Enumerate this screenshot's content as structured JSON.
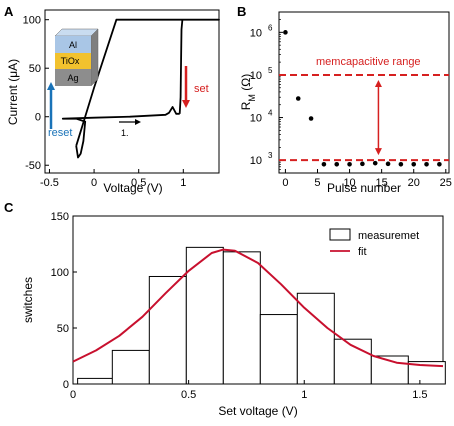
{
  "chart_data": [
    {
      "panel": "A",
      "type": "line",
      "title": "",
      "xlabel": "Voltage (V)",
      "ylabel": "Current (μA)",
      "xlim": [
        -0.55,
        1.4
      ],
      "ylim": [
        -58,
        110
      ],
      "xticks": [
        "-0.5",
        "0",
        "0.5",
        "1"
      ],
      "yticks": [
        "-50",
        "0",
        "50",
        "100"
      ],
      "series": [
        {
          "name": "",
          "x": [
            0.96,
            0.97,
            0.975,
            0.98,
            0.99,
            1.4,
            0.35,
            0.25,
            0.0,
            -0.15,
            -0.2
          ],
          "y": [
            3,
            20,
            60,
            90,
            100,
            100,
            100,
            100,
            30,
            -15,
            -30
          ]
        },
        {
          "name": "",
          "x": [
            -0.2,
            -0.18,
            -0.15,
            -0.12,
            -0.1,
            -0.2,
            -0.3,
            -0.35,
            0.0,
            0.4,
            0.8,
            0.84,
            0.88,
            0.92,
            0.96
          ],
          "y": [
            -30,
            -42,
            -38,
            -25,
            -5,
            -2,
            -2,
            -2,
            -1,
            0,
            2,
            4,
            10,
            3,
            3
          ]
        }
      ],
      "inset_layers": [
        "Al",
        "TiOx",
        "Ag"
      ],
      "annotations": {
        "reset": "reset",
        "set": "set",
        "sweep": "1."
      },
      "colors": {
        "reset": "#1a73b8",
        "set": "#d62020",
        "al": "#a9c6e6",
        "tiox": "#f2c22e",
        "ag": "#8d8d8d"
      }
    },
    {
      "panel": "B",
      "type": "scatter",
      "title": "",
      "xlabel": "Pulse number",
      "ylabel": "RM (Ω)",
      "yscale": "log",
      "xlim": [
        -1,
        25.5
      ],
      "ylim": [
        500,
        3000000
      ],
      "xticks": [
        "0",
        "5",
        "10",
        "15",
        "20",
        "25"
      ],
      "yticks": [
        "10",
        "10",
        "10",
        "10"
      ],
      "ytick_exponents": [
        "3",
        "4",
        "5",
        "6"
      ],
      "x": [
        0,
        2,
        4,
        6,
        8,
        10,
        12,
        14,
        16,
        18,
        20,
        22,
        24
      ],
      "y": [
        1000000,
        28000,
        9500,
        800,
        800,
        800,
        820,
        850,
        820,
        800,
        800,
        800,
        800
      ],
      "range_lines": [
        100000,
        1000
      ],
      "annotation": "memcapacitive range",
      "colors": {
        "range": "#d62020"
      }
    },
    {
      "panel": "C",
      "type": "bar",
      "title": "",
      "xlabel": "Set voltage (V)",
      "ylabel": "switches",
      "xlim": [
        0,
        1.6
      ],
      "ylim": [
        0,
        150
      ],
      "xticks": [
        "0",
        "0.5",
        "1",
        "1.5"
      ],
      "yticks": [
        "0",
        "50",
        "100",
        "150"
      ],
      "bin_edges": [
        0.02,
        0.17,
        0.33,
        0.49,
        0.65,
        0.81,
        0.97,
        1.13,
        1.29,
        1.45
      ],
      "bin_width": 0.16,
      "values": [
        5,
        30,
        96,
        122,
        118,
        62,
        81,
        40,
        25,
        20
      ],
      "fit": {
        "x": [
          0,
          0.1,
          0.2,
          0.3,
          0.4,
          0.5,
          0.6,
          0.65,
          0.7,
          0.8,
          0.9,
          1.0,
          1.1,
          1.2,
          1.3,
          1.4,
          1.5,
          1.6
        ],
        "y": [
          20,
          30,
          43,
          60,
          81,
          101,
          117,
          120,
          119,
          108,
          89,
          68,
          50,
          35,
          25,
          19,
          17,
          16
        ]
      },
      "legend": {
        "position": "top-right",
        "entries": [
          "measuremet",
          "fit"
        ]
      },
      "colors": {
        "fit": "#c8102e",
        "bar": "#000000"
      }
    }
  ]
}
